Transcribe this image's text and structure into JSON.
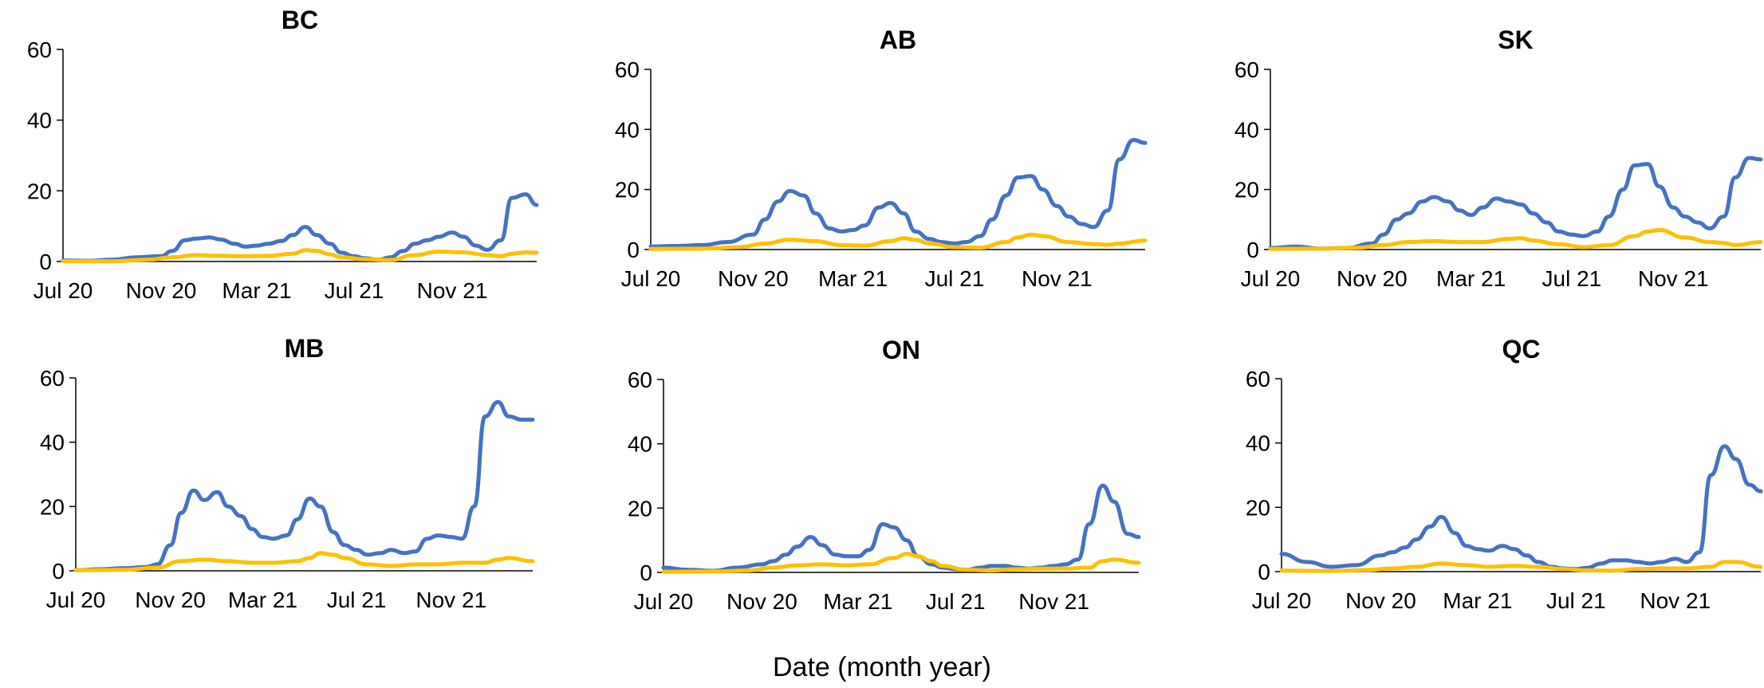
{
  "figure": {
    "xlabel": "Date (month year)"
  },
  "colors": {
    "series_a": "#4472C4",
    "series_b": "#FFC000",
    "axis": "#000000"
  },
  "chart_data": [
    {
      "type": "line",
      "title": "BC",
      "ylim": [
        0,
        60
      ],
      "yticks": [
        "0",
        "20",
        "40",
        "60"
      ],
      "xlim": [
        "2020-07-01",
        "2022-02-15"
      ],
      "xtick_labels": [
        "Jul 20",
        "Nov 20",
        "Mar 21",
        "Jul 21",
        "Nov 21"
      ],
      "grid": false,
      "legend": "none",
      "series": [
        {
          "x": [
            "2020-07-01",
            "2020-08-01",
            "2020-09-01",
            "2020-10-01",
            "2020-11-01",
            "2020-11-15",
            "2020-12-01",
            "2020-12-15",
            "2021-01-01",
            "2021-01-15",
            "2021-02-01",
            "2021-02-15",
            "2021-03-01",
            "2021-03-15",
            "2021-04-01",
            "2021-04-15",
            "2021-05-01",
            "2021-05-15",
            "2021-06-01",
            "2021-06-15",
            "2021-07-01",
            "2021-07-15",
            "2021-08-01",
            "2021-08-15",
            "2021-09-01",
            "2021-09-15",
            "2021-10-01",
            "2021-10-15",
            "2021-11-01",
            "2021-11-15",
            "2021-12-01",
            "2021-12-15",
            "2022-01-01",
            "2022-01-15",
            "2022-02-01",
            "2022-02-15"
          ],
          "values": [
            0.3,
            0.2,
            0.5,
            1.2,
            1.5,
            3.0,
            6.0,
            6.5,
            6.8,
            6.2,
            5.0,
            4.2,
            4.5,
            5.0,
            5.8,
            7.5,
            9.8,
            7.5,
            5.0,
            2.5,
            1.5,
            0.9,
            0.5,
            1.2,
            3.0,
            5.0,
            6.0,
            7.0,
            8.2,
            7.0,
            4.5,
            3.3,
            6.0,
            18.0,
            19.0,
            16.0
          ]
        },
        {
          "x": [
            "2020-07-01",
            "2020-09-01",
            "2020-10-15",
            "2020-11-15",
            "2020-12-15",
            "2021-01-15",
            "2021-02-15",
            "2021-03-15",
            "2021-04-15",
            "2021-05-01",
            "2021-05-15",
            "2021-06-01",
            "2021-06-15",
            "2021-07-15",
            "2021-08-15",
            "2021-09-15",
            "2021-10-15",
            "2021-11-15",
            "2021-12-15",
            "2022-01-01",
            "2022-01-15",
            "2022-02-01",
            "2022-02-15"
          ],
          "values": [
            0.1,
            0.1,
            0.5,
            1.2,
            1.8,
            1.6,
            1.5,
            1.6,
            2.2,
            3.2,
            3.0,
            2.0,
            1.2,
            0.6,
            0.4,
            1.8,
            2.8,
            2.6,
            1.8,
            1.5,
            2.2,
            2.6,
            2.5
          ]
        }
      ]
    },
    {
      "type": "line",
      "title": "AB",
      "ylim": [
        0,
        60
      ],
      "yticks": [
        "0",
        "20",
        "40",
        "60"
      ],
      "xlim": [
        "2020-07-01",
        "2022-02-15"
      ],
      "xtick_labels": [
        "Jul 20",
        "Nov 20",
        "Mar 21",
        "Jul 21",
        "Nov 21"
      ],
      "grid": false,
      "legend": "none",
      "series": [
        {
          "x": [
            "2020-07-01",
            "2020-08-01",
            "2020-09-01",
            "2020-10-01",
            "2020-11-01",
            "2020-11-15",
            "2020-12-01",
            "2020-12-15",
            "2021-01-01",
            "2021-01-15",
            "2021-02-01",
            "2021-02-15",
            "2021-03-01",
            "2021-03-15",
            "2021-04-01",
            "2021-04-15",
            "2021-05-01",
            "2021-05-15",
            "2021-06-01",
            "2021-06-15",
            "2021-07-01",
            "2021-07-15",
            "2021-08-01",
            "2021-08-15",
            "2021-09-01",
            "2021-09-15",
            "2021-10-01",
            "2021-10-15",
            "2021-11-01",
            "2021-11-15",
            "2021-12-01",
            "2021-12-15",
            "2022-01-01",
            "2022-01-15",
            "2022-02-01",
            "2022-02-15"
          ],
          "values": [
            1.0,
            1.2,
            1.5,
            2.5,
            5.0,
            10.0,
            16.0,
            19.5,
            18.0,
            12.0,
            7.0,
            6.0,
            6.5,
            8.0,
            14.0,
            15.5,
            12.0,
            6.0,
            3.5,
            2.5,
            2.0,
            2.5,
            4.5,
            10.0,
            18.0,
            24.0,
            24.5,
            20.0,
            14.5,
            11.0,
            8.5,
            7.5,
            13.0,
            30.0,
            36.5,
            35.5
          ]
        },
        {
          "x": [
            "2020-07-01",
            "2020-09-01",
            "2020-10-15",
            "2020-11-15",
            "2020-12-15",
            "2021-01-15",
            "2021-02-15",
            "2021-03-15",
            "2021-04-15",
            "2021-05-01",
            "2021-05-15",
            "2021-06-01",
            "2021-07-01",
            "2021-08-01",
            "2021-09-01",
            "2021-09-15",
            "2021-10-01",
            "2021-10-15",
            "2021-11-15",
            "2021-12-15",
            "2022-01-01",
            "2022-01-15",
            "2022-02-15"
          ],
          "values": [
            0.2,
            0.3,
            0.8,
            2.0,
            3.3,
            2.8,
            1.5,
            1.3,
            2.8,
            3.8,
            3.2,
            2.0,
            0.8,
            0.6,
            2.5,
            4.0,
            5.0,
            4.5,
            2.5,
            1.8,
            1.6,
            2.0,
            3.0
          ]
        }
      ]
    },
    {
      "type": "line",
      "title": "SK",
      "ylim": [
        0,
        60
      ],
      "yticks": [
        "0",
        "20",
        "40",
        "60"
      ],
      "xlim": [
        "2020-07-01",
        "2022-02-15"
      ],
      "xtick_labels": [
        "Jul 20",
        "Nov 20",
        "Mar 21",
        "Jul 21",
        "Nov 21"
      ],
      "grid": false,
      "legend": "none",
      "series": [
        {
          "x": [
            "2020-07-01",
            "2020-08-01",
            "2020-09-01",
            "2020-10-01",
            "2020-11-01",
            "2020-11-15",
            "2020-12-01",
            "2020-12-15",
            "2021-01-01",
            "2021-01-15",
            "2021-02-01",
            "2021-02-15",
            "2021-03-01",
            "2021-03-15",
            "2021-04-01",
            "2021-04-15",
            "2021-05-01",
            "2021-05-15",
            "2021-06-01",
            "2021-06-15",
            "2021-07-01",
            "2021-07-15",
            "2021-08-01",
            "2021-08-15",
            "2021-09-01",
            "2021-09-15",
            "2021-10-01",
            "2021-10-15",
            "2021-11-01",
            "2021-11-15",
            "2021-12-01",
            "2021-12-15",
            "2022-01-01",
            "2022-01-15",
            "2022-02-01",
            "2022-02-15"
          ],
          "values": [
            0.5,
            1.0,
            0.3,
            0.5,
            2.0,
            5.0,
            10.0,
            12.0,
            16.0,
            17.5,
            16.0,
            13.0,
            11.5,
            14.0,
            17.0,
            16.0,
            15.0,
            12.0,
            9.0,
            6.0,
            5.0,
            4.5,
            6.0,
            11.0,
            20.0,
            28.0,
            28.5,
            21.0,
            14.0,
            11.0,
            9.0,
            7.0,
            11.0,
            24.0,
            30.5,
            30.0
          ]
        },
        {
          "x": [
            "2020-07-01",
            "2020-09-01",
            "2020-10-15",
            "2020-11-15",
            "2020-12-15",
            "2021-01-15",
            "2021-02-15",
            "2021-03-15",
            "2021-04-15",
            "2021-05-01",
            "2021-05-15",
            "2021-06-15",
            "2021-07-15",
            "2021-08-15",
            "2021-09-15",
            "2021-10-01",
            "2021-10-15",
            "2021-11-15",
            "2021-12-15",
            "2022-01-01",
            "2022-01-15",
            "2022-02-15"
          ],
          "values": [
            0.2,
            0.3,
            0.6,
            1.5,
            2.5,
            2.8,
            2.5,
            2.5,
            3.5,
            3.8,
            3.0,
            1.8,
            0.8,
            1.5,
            4.5,
            6.0,
            6.5,
            4.0,
            2.5,
            2.2,
            1.5,
            2.5
          ]
        }
      ]
    },
    {
      "type": "line",
      "title": "MB",
      "ylim": [
        0,
        60
      ],
      "yticks": [
        "0",
        "20",
        "40",
        "60"
      ],
      "xlim": [
        "2020-07-01",
        "2022-02-15"
      ],
      "xtick_labels": [
        "Jul 20",
        "Nov 20",
        "Mar 21",
        "Jul 21",
        "Nov 21"
      ],
      "grid": false,
      "legend": "none",
      "series": [
        {
          "x": [
            "2020-07-01",
            "2020-08-01",
            "2020-09-01",
            "2020-10-01",
            "2020-10-15",
            "2020-11-01",
            "2020-11-15",
            "2020-12-01",
            "2020-12-15",
            "2021-01-01",
            "2021-01-15",
            "2021-02-01",
            "2021-02-15",
            "2021-03-01",
            "2021-03-15",
            "2021-04-01",
            "2021-04-15",
            "2021-05-01",
            "2021-05-15",
            "2021-06-01",
            "2021-06-15",
            "2021-07-01",
            "2021-07-15",
            "2021-08-01",
            "2021-08-15",
            "2021-09-01",
            "2021-09-15",
            "2021-10-01",
            "2021-10-15",
            "2021-11-01",
            "2021-11-15",
            "2021-12-01",
            "2021-12-15",
            "2022-01-01",
            "2022-01-15",
            "2022-02-01",
            "2022-02-15"
          ],
          "values": [
            0.2,
            0.5,
            0.8,
            1.2,
            2.0,
            8.0,
            18.0,
            25.0,
            22.0,
            24.5,
            20.0,
            17.0,
            13.0,
            10.5,
            10.0,
            11.0,
            16.0,
            22.5,
            20.0,
            12.0,
            8.0,
            6.5,
            5.0,
            5.5,
            6.5,
            5.5,
            6.0,
            10.0,
            11.0,
            10.5,
            10.0,
            20.0,
            48.0,
            52.5,
            48.0,
            47.0,
            47.0
          ]
        },
        {
          "x": [
            "2020-07-01",
            "2020-09-01",
            "2020-10-15",
            "2020-11-15",
            "2020-12-15",
            "2021-01-15",
            "2021-02-15",
            "2021-03-15",
            "2021-04-15",
            "2021-05-01",
            "2021-05-15",
            "2021-06-01",
            "2021-06-15",
            "2021-07-15",
            "2021-08-15",
            "2021-09-15",
            "2021-10-15",
            "2021-11-15",
            "2021-12-15",
            "2022-01-01",
            "2022-01-15",
            "2022-02-15"
          ],
          "values": [
            0.2,
            0.3,
            1.0,
            3.0,
            3.5,
            3.0,
            2.5,
            2.5,
            3.0,
            4.0,
            5.5,
            5.0,
            4.0,
            2.0,
            1.5,
            2.0,
            2.0,
            2.5,
            2.5,
            3.5,
            4.0,
            3.0
          ]
        }
      ]
    },
    {
      "type": "line",
      "title": "ON",
      "ylim": [
        0,
        60
      ],
      "yticks": [
        "0",
        "20",
        "40",
        "60"
      ],
      "xlim": [
        "2020-07-01",
        "2022-02-15"
      ],
      "xtick_labels": [
        "Jul 20",
        "Nov 20",
        "Mar 21",
        "Jul 21",
        "Nov 21"
      ],
      "grid": false,
      "legend": "none",
      "series": [
        {
          "x": [
            "2020-07-01",
            "2020-08-01",
            "2020-09-01",
            "2020-10-01",
            "2020-11-01",
            "2020-11-15",
            "2020-12-01",
            "2020-12-15",
            "2021-01-01",
            "2021-01-15",
            "2021-02-01",
            "2021-02-15",
            "2021-03-01",
            "2021-03-15",
            "2021-04-01",
            "2021-04-15",
            "2021-05-01",
            "2021-05-15",
            "2021-06-01",
            "2021-06-15",
            "2021-07-01",
            "2021-07-15",
            "2021-08-01",
            "2021-08-15",
            "2021-09-01",
            "2021-09-15",
            "2021-10-01",
            "2021-10-15",
            "2021-11-01",
            "2021-11-15",
            "2021-12-01",
            "2021-12-15",
            "2022-01-01",
            "2022-01-15",
            "2022-02-01",
            "2022-02-15"
          ],
          "values": [
            1.5,
            0.8,
            0.5,
            1.5,
            2.5,
            3.5,
            5.5,
            8.0,
            11.0,
            8.5,
            5.5,
            5.0,
            5.0,
            7.0,
            15.0,
            14.0,
            10.0,
            5.0,
            2.5,
            1.5,
            1.0,
            0.8,
            1.5,
            2.0,
            2.0,
            1.5,
            1.2,
            1.5,
            2.0,
            2.5,
            4.0,
            15.0,
            27.0,
            22.0,
            12.0,
            11.0
          ]
        },
        {
          "x": [
            "2020-07-01",
            "2020-09-01",
            "2020-10-15",
            "2020-11-15",
            "2020-12-15",
            "2021-01-15",
            "2021-02-15",
            "2021-03-15",
            "2021-04-15",
            "2021-05-01",
            "2021-05-15",
            "2021-06-01",
            "2021-06-15",
            "2021-07-15",
            "2021-08-15",
            "2021-09-15",
            "2021-10-15",
            "2021-11-15",
            "2021-12-15",
            "2022-01-01",
            "2022-01-15",
            "2022-02-15"
          ],
          "values": [
            0.2,
            0.3,
            0.6,
            1.5,
            2.2,
            2.5,
            2.2,
            2.5,
            4.5,
            5.8,
            5.0,
            3.5,
            2.0,
            0.8,
            0.6,
            1.0,
            1.2,
            1.2,
            1.5,
            3.5,
            4.0,
            3.0
          ]
        }
      ]
    },
    {
      "type": "line",
      "title": "QC",
      "ylim": [
        0,
        60
      ],
      "yticks": [
        "0",
        "20",
        "40",
        "60"
      ],
      "xlim": [
        "2020-07-01",
        "2022-02-15"
      ],
      "xtick_labels": [
        "Jul 20",
        "Nov 20",
        "Mar 21",
        "Jul 21",
        "Nov 21"
      ],
      "grid": false,
      "legend": "none",
      "series": [
        {
          "x": [
            "2020-07-01",
            "2020-08-01",
            "2020-09-01",
            "2020-10-01",
            "2020-11-01",
            "2020-11-15",
            "2020-12-01",
            "2020-12-15",
            "2021-01-01",
            "2021-01-15",
            "2021-02-01",
            "2021-02-15",
            "2021-03-01",
            "2021-03-15",
            "2021-04-01",
            "2021-04-15",
            "2021-05-01",
            "2021-05-15",
            "2021-06-01",
            "2021-06-15",
            "2021-07-01",
            "2021-07-15",
            "2021-08-01",
            "2021-08-15",
            "2021-09-01",
            "2021-09-15",
            "2021-10-01",
            "2021-10-15",
            "2021-11-01",
            "2021-11-15",
            "2021-12-01",
            "2021-12-15",
            "2022-01-01",
            "2022-01-15",
            "2022-02-01",
            "2022-02-15"
          ],
          "values": [
            5.5,
            3.0,
            1.5,
            2.0,
            5.0,
            6.0,
            7.5,
            10.0,
            14.0,
            17.0,
            12.0,
            8.0,
            7.0,
            6.5,
            8.0,
            7.0,
            5.0,
            3.0,
            1.5,
            1.0,
            0.8,
            1.2,
            2.5,
            3.5,
            3.5,
            3.0,
            2.5,
            3.0,
            4.0,
            3.0,
            6.0,
            30.0,
            39.0,
            35.0,
            27.0,
            25.0
          ]
        },
        {
          "x": [
            "2020-07-01",
            "2020-09-01",
            "2020-10-15",
            "2020-11-15",
            "2020-12-15",
            "2021-01-15",
            "2021-02-15",
            "2021-03-15",
            "2021-04-15",
            "2021-05-15",
            "2021-06-15",
            "2021-07-15",
            "2021-08-15",
            "2021-09-15",
            "2021-10-15",
            "2021-11-15",
            "2021-12-15",
            "2022-01-01",
            "2022-01-15",
            "2022-02-15"
          ],
          "values": [
            0.3,
            0.2,
            0.5,
            1.0,
            1.5,
            2.5,
            2.0,
            1.5,
            1.8,
            1.5,
            0.8,
            0.4,
            0.3,
            0.8,
            1.0,
            1.0,
            1.5,
            3.0,
            3.0,
            1.5
          ]
        }
      ]
    }
  ]
}
